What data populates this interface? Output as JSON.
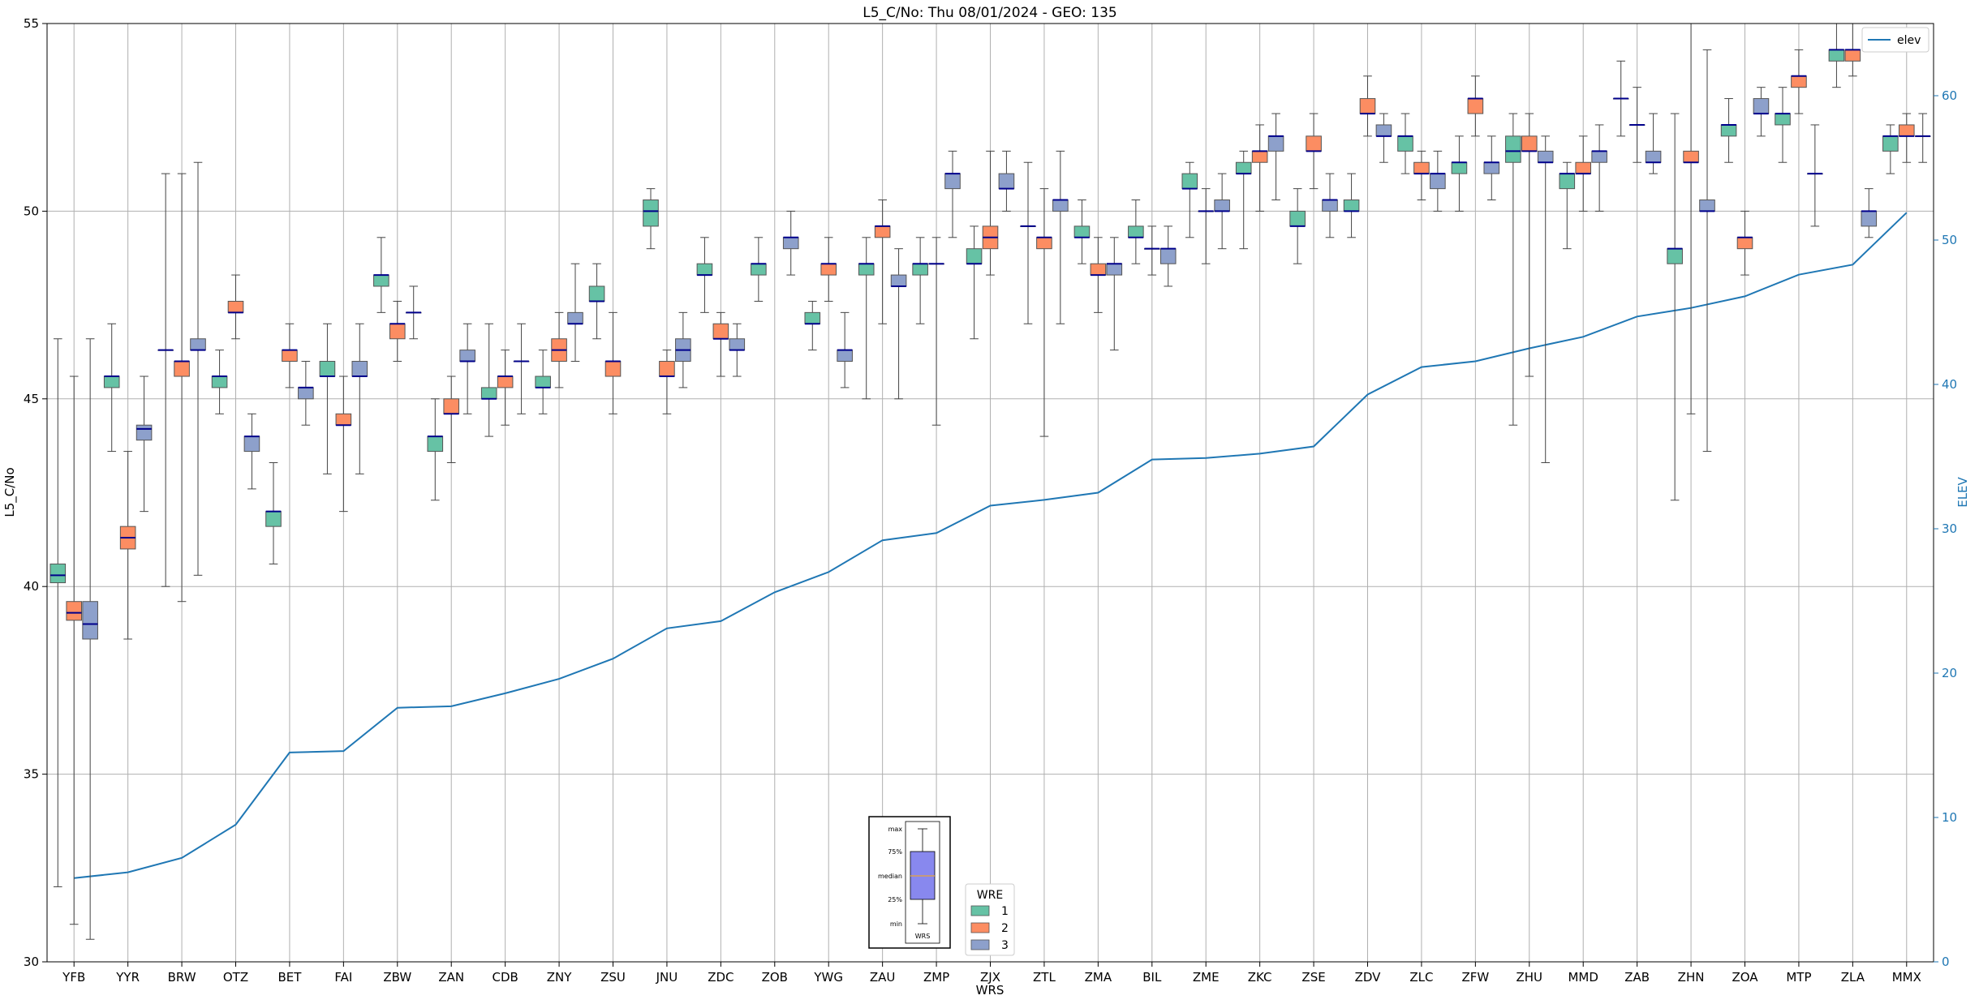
{
  "chart_data": {
    "type": "box",
    "title": "L5_C/No: Thu 08/01/2024 - GEO: 135",
    "xlabel": "WRS",
    "ylabel": "L5_C/No",
    "y2label": "ELEV",
    "ylim": [
      30,
      55
    ],
    "y2lim": [
      0,
      65
    ],
    "yticks": [
      30,
      35,
      40,
      45,
      50,
      55
    ],
    "y2ticks": [
      0,
      10,
      20,
      30,
      40,
      50,
      60
    ],
    "grid": true,
    "categories": [
      "YFB",
      "YYR",
      "BRW",
      "OTZ",
      "BET",
      "FAI",
      "ZBW",
      "ZAN",
      "CDB",
      "ZNY",
      "ZSU",
      "JNU",
      "ZDC",
      "ZOB",
      "YWG",
      "ZAU",
      "ZMP",
      "ZJX",
      "ZTL",
      "ZMA",
      "BIL",
      "ZME",
      "ZKC",
      "ZSE",
      "ZDV",
      "ZLC",
      "ZFW",
      "ZHU",
      "MMD",
      "ZAB",
      "ZHN",
      "ZOA",
      "MTP",
      "ZLA",
      "MMX"
    ],
    "box_legend": {
      "title": "WRE",
      "entries": [
        {
          "label": "1",
          "color": "#66c2a5"
        },
        {
          "label": "2",
          "color": "#fc8d62"
        },
        {
          "label": "3",
          "color": "#8da0cb"
        }
      ]
    },
    "line_series": {
      "name": "elev",
      "color": "#1f77b4",
      "values": [
        5.8,
        6.2,
        7.2,
        9.5,
        14.5,
        14.6,
        17.6,
        17.7,
        18.6,
        19.6,
        21.0,
        23.1,
        23.6,
        25.6,
        27.0,
        29.2,
        29.7,
        31.6,
        32.0,
        32.5,
        34.8,
        34.9,
        35.2,
        35.7,
        39.3,
        41.2,
        41.6,
        42.5,
        43.3,
        44.7,
        45.3,
        46.1,
        47.6,
        48.3,
        51.9
      ]
    },
    "boxes": [
      {
        "cat": "YFB",
        "wre": 1,
        "min": 32.0,
        "q1": 40.1,
        "median": 40.3,
        "q3": 40.6,
        "max": 46.6
      },
      {
        "cat": "YFB",
        "wre": 2,
        "min": 31.0,
        "q1": 39.1,
        "median": 39.3,
        "q3": 39.6,
        "max": 45.6
      },
      {
        "cat": "YFB",
        "wre": 3,
        "min": 30.6,
        "q1": 38.6,
        "median": 39.0,
        "q3": 39.6,
        "max": 46.6
      },
      {
        "cat": "YYR",
        "wre": 1,
        "min": 43.6,
        "q1": 45.3,
        "median": 45.6,
        "q3": 45.6,
        "max": 47.0
      },
      {
        "cat": "YYR",
        "wre": 2,
        "min": 38.6,
        "q1": 41.0,
        "median": 41.3,
        "q3": 41.6,
        "max": 43.6
      },
      {
        "cat": "YYR",
        "wre": 3,
        "min": 42.0,
        "q1": 43.9,
        "median": 44.2,
        "q3": 44.3,
        "max": 45.6
      },
      {
        "cat": "BRW",
        "wre": 1,
        "min": 40.0,
        "q1": 46.3,
        "median": 46.3,
        "q3": 46.3,
        "max": 51.0
      },
      {
        "cat": "BRW",
        "wre": 2,
        "min": 39.6,
        "q1": 45.6,
        "median": 46.0,
        "q3": 46.0,
        "max": 51.0
      },
      {
        "cat": "BRW",
        "wre": 3,
        "min": 40.3,
        "q1": 46.3,
        "median": 46.3,
        "q3": 46.6,
        "max": 51.3
      },
      {
        "cat": "OTZ",
        "wre": 1,
        "min": 44.6,
        "q1": 45.3,
        "median": 45.6,
        "q3": 45.6,
        "max": 46.3
      },
      {
        "cat": "OTZ",
        "wre": 2,
        "min": 46.6,
        "q1": 47.3,
        "median": 47.3,
        "q3": 47.6,
        "max": 48.3
      },
      {
        "cat": "OTZ",
        "wre": 3,
        "min": 42.6,
        "q1": 43.6,
        "median": 44.0,
        "q3": 44.0,
        "max": 44.6
      },
      {
        "cat": "BET",
        "wre": 1,
        "min": 40.6,
        "q1": 41.6,
        "median": 42.0,
        "q3": 42.0,
        "max": 43.3
      },
      {
        "cat": "BET",
        "wre": 2,
        "min": 45.3,
        "q1": 46.0,
        "median": 46.3,
        "q3": 46.3,
        "max": 47.0
      },
      {
        "cat": "BET",
        "wre": 3,
        "min": 44.3,
        "q1": 45.0,
        "median": 45.3,
        "q3": 45.3,
        "max": 46.0
      },
      {
        "cat": "FAI",
        "wre": 1,
        "min": 43.0,
        "q1": 45.6,
        "median": 45.6,
        "q3": 46.0,
        "max": 47.0
      },
      {
        "cat": "FAI",
        "wre": 2,
        "min": 42.0,
        "q1": 44.3,
        "median": 44.3,
        "q3": 44.6,
        "max": 45.6
      },
      {
        "cat": "FAI",
        "wre": 3,
        "min": 43.0,
        "q1": 45.6,
        "median": 45.6,
        "q3": 46.0,
        "max": 47.0
      },
      {
        "cat": "ZBW",
        "wre": 1,
        "min": 47.3,
        "q1": 48.0,
        "median": 48.3,
        "q3": 48.3,
        "max": 49.3
      },
      {
        "cat": "ZBW",
        "wre": 2,
        "min": 46.0,
        "q1": 46.6,
        "median": 47.0,
        "q3": 47.0,
        "max": 47.6
      },
      {
        "cat": "ZBW",
        "wre": 3,
        "min": 46.6,
        "q1": 47.3,
        "median": 47.3,
        "q3": 47.3,
        "max": 48.0
      },
      {
        "cat": "ZAN",
        "wre": 1,
        "min": 42.3,
        "q1": 43.6,
        "median": 44.0,
        "q3": 44.0,
        "max": 45.0
      },
      {
        "cat": "ZAN",
        "wre": 2,
        "min": 43.3,
        "q1": 44.6,
        "median": 44.6,
        "q3": 45.0,
        "max": 45.6
      },
      {
        "cat": "ZAN",
        "wre": 3,
        "min": 44.6,
        "q1": 46.0,
        "median": 46.0,
        "q3": 46.3,
        "max": 47.0
      },
      {
        "cat": "CDB",
        "wre": 1,
        "min": 44.0,
        "q1": 45.0,
        "median": 45.0,
        "q3": 45.3,
        "max": 47.0
      },
      {
        "cat": "CDB",
        "wre": 2,
        "min": 44.3,
        "q1": 45.3,
        "median": 45.6,
        "q3": 45.6,
        "max": 46.3
      },
      {
        "cat": "CDB",
        "wre": 3,
        "min": 44.6,
        "q1": 46.0,
        "median": 46.0,
        "q3": 46.0,
        "max": 47.0
      },
      {
        "cat": "ZNY",
        "wre": 1,
        "min": 44.6,
        "q1": 45.3,
        "median": 45.3,
        "q3": 45.6,
        "max": 46.3
      },
      {
        "cat": "ZNY",
        "wre": 2,
        "min": 45.3,
        "q1": 46.0,
        "median": 46.3,
        "q3": 46.6,
        "max": 47.3
      },
      {
        "cat": "ZNY",
        "wre": 3,
        "min": 46.0,
        "q1": 47.0,
        "median": 47.0,
        "q3": 47.3,
        "max": 48.6
      },
      {
        "cat": "ZSU",
        "wre": 1,
        "min": 46.6,
        "q1": 47.6,
        "median": 47.6,
        "q3": 48.0,
        "max": 48.6
      },
      {
        "cat": "ZSU",
        "wre": 2,
        "min": 44.6,
        "q1": 45.6,
        "median": 46.0,
        "q3": 46.0,
        "max": 47.3
      },
      {
        "cat": "JNU",
        "wre": 1,
        "min": 49.0,
        "q1": 49.6,
        "median": 50.0,
        "q3": 50.3,
        "max": 50.6
      },
      {
        "cat": "JNU",
        "wre": 2,
        "min": 44.6,
        "q1": 45.6,
        "median": 45.6,
        "q3": 46.0,
        "max": 46.3
      },
      {
        "cat": "JNU",
        "wre": 3,
        "min": 45.3,
        "q1": 46.0,
        "median": 46.3,
        "q3": 46.6,
        "max": 47.3
      },
      {
        "cat": "ZDC",
        "wre": 1,
        "min": 47.3,
        "q1": 48.3,
        "median": 48.3,
        "q3": 48.6,
        "max": 49.3
      },
      {
        "cat": "ZDC",
        "wre": 2,
        "min": 45.6,
        "q1": 46.6,
        "median": 46.6,
        "q3": 47.0,
        "max": 47.3
      },
      {
        "cat": "ZDC",
        "wre": 3,
        "min": 45.6,
        "q1": 46.3,
        "median": 46.3,
        "q3": 46.6,
        "max": 47.0
      },
      {
        "cat": "ZOB",
        "wre": 1,
        "min": 47.6,
        "q1": 48.3,
        "median": 48.6,
        "q3": 48.6,
        "max": 49.3
      },
      {
        "cat": "ZOB",
        "wre": 3,
        "min": 48.3,
        "q1": 49.0,
        "median": 49.3,
        "q3": 49.3,
        "max": 50.0
      },
      {
        "cat": "YWG",
        "wre": 1,
        "min": 46.3,
        "q1": 47.0,
        "median": 47.0,
        "q3": 47.3,
        "max": 47.6
      },
      {
        "cat": "YWG",
        "wre": 2,
        "min": 47.6,
        "q1": 48.3,
        "median": 48.6,
        "q3": 48.6,
        "max": 49.3
      },
      {
        "cat": "YWG",
        "wre": 3,
        "min": 45.3,
        "q1": 46.0,
        "median": 46.3,
        "q3": 46.3,
        "max": 47.3
      },
      {
        "cat": "ZAU",
        "wre": 1,
        "min": 45.0,
        "q1": 48.3,
        "median": 48.6,
        "q3": 48.6,
        "max": 49.3
      },
      {
        "cat": "ZAU",
        "wre": 2,
        "min": 47.0,
        "q1": 49.3,
        "median": 49.6,
        "q3": 49.6,
        "max": 50.3
      },
      {
        "cat": "ZAU",
        "wre": 3,
        "min": 45.0,
        "q1": 48.0,
        "median": 48.0,
        "q3": 48.3,
        "max": 49.0
      },
      {
        "cat": "ZMP",
        "wre": 1,
        "min": 47.0,
        "q1": 48.3,
        "median": 48.6,
        "q3": 48.6,
        "max": 49.3
      },
      {
        "cat": "ZMP",
        "wre": 2,
        "min": 44.3,
        "q1": 48.6,
        "median": 48.6,
        "q3": 48.6,
        "max": 49.3
      },
      {
        "cat": "ZMP",
        "wre": 3,
        "min": 49.3,
        "q1": 50.6,
        "median": 51.0,
        "q3": 51.0,
        "max": 51.6
      },
      {
        "cat": "ZJX",
        "wre": 1,
        "min": 46.6,
        "q1": 48.6,
        "median": 48.6,
        "q3": 49.0,
        "max": 49.6
      },
      {
        "cat": "ZJX",
        "wre": 2,
        "min": 48.3,
        "q1": 49.0,
        "median": 49.3,
        "q3": 49.6,
        "max": 51.6
      },
      {
        "cat": "ZJX",
        "wre": 3,
        "min": 50.0,
        "q1": 50.6,
        "median": 50.6,
        "q3": 51.0,
        "max": 51.6
      },
      {
        "cat": "ZTL",
        "wre": 1,
        "min": 47.0,
        "q1": 49.6,
        "median": 49.6,
        "q3": 49.6,
        "max": 51.3
      },
      {
        "cat": "ZTL",
        "wre": 2,
        "min": 44.0,
        "q1": 49.0,
        "median": 49.3,
        "q3": 49.3,
        "max": 50.6
      },
      {
        "cat": "ZTL",
        "wre": 3,
        "min": 47.0,
        "q1": 50.0,
        "median": 50.3,
        "q3": 50.3,
        "max": 51.6
      },
      {
        "cat": "ZMA",
        "wre": 1,
        "min": 48.6,
        "q1": 49.3,
        "median": 49.3,
        "q3": 49.6,
        "max": 50.3
      },
      {
        "cat": "ZMA",
        "wre": 2,
        "min": 47.3,
        "q1": 48.3,
        "median": 48.3,
        "q3": 48.6,
        "max": 49.3
      },
      {
        "cat": "ZMA",
        "wre": 3,
        "min": 46.3,
        "q1": 48.3,
        "median": 48.6,
        "q3": 48.6,
        "max": 49.3
      },
      {
        "cat": "BIL",
        "wre": 1,
        "min": 48.6,
        "q1": 49.3,
        "median": 49.3,
        "q3": 49.6,
        "max": 50.3
      },
      {
        "cat": "BIL",
        "wre": 2,
        "min": 48.3,
        "q1": 49.0,
        "median": 49.0,
        "q3": 49.0,
        "max": 49.6
      },
      {
        "cat": "BIL",
        "wre": 3,
        "min": 48.0,
        "q1": 48.6,
        "median": 49.0,
        "q3": 49.0,
        "max": 49.6
      },
      {
        "cat": "ZME",
        "wre": 1,
        "min": 49.3,
        "q1": 50.6,
        "median": 50.6,
        "q3": 51.0,
        "max": 51.3
      },
      {
        "cat": "ZME",
        "wre": 2,
        "min": 48.6,
        "q1": 50.0,
        "median": 50.0,
        "q3": 50.0,
        "max": 50.6
      },
      {
        "cat": "ZME",
        "wre": 3,
        "min": 49.0,
        "q1": 50.0,
        "median": 50.0,
        "q3": 50.3,
        "max": 51.0
      },
      {
        "cat": "ZKC",
        "wre": 1,
        "min": 49.0,
        "q1": 51.0,
        "median": 51.0,
        "q3": 51.3,
        "max": 51.6
      },
      {
        "cat": "ZKC",
        "wre": 2,
        "min": 50.0,
        "q1": 51.3,
        "median": 51.6,
        "q3": 51.6,
        "max": 52.3
      },
      {
        "cat": "ZKC",
        "wre": 3,
        "min": 50.3,
        "q1": 51.6,
        "median": 52.0,
        "q3": 52.0,
        "max": 52.6
      },
      {
        "cat": "ZSE",
        "wre": 1,
        "min": 48.6,
        "q1": 49.6,
        "median": 49.6,
        "q3": 50.0,
        "max": 50.6
      },
      {
        "cat": "ZSE",
        "wre": 2,
        "min": 50.6,
        "q1": 51.6,
        "median": 51.6,
        "q3": 52.0,
        "max": 52.6
      },
      {
        "cat": "ZSE",
        "wre": 3,
        "min": 49.3,
        "q1": 50.0,
        "median": 50.3,
        "q3": 50.3,
        "max": 51.0
      },
      {
        "cat": "ZDV",
        "wre": 1,
        "min": 49.3,
        "q1": 50.0,
        "median": 50.0,
        "q3": 50.3,
        "max": 51.0
      },
      {
        "cat": "ZDV",
        "wre": 2,
        "min": 52.0,
        "q1": 52.6,
        "median": 52.6,
        "q3": 53.0,
        "max": 53.6
      },
      {
        "cat": "ZDV",
        "wre": 3,
        "min": 51.3,
        "q1": 52.0,
        "median": 52.0,
        "q3": 52.3,
        "max": 52.6
      },
      {
        "cat": "ZLC",
        "wre": 1,
        "min": 51.0,
        "q1": 51.6,
        "median": 52.0,
        "q3": 52.0,
        "max": 52.6
      },
      {
        "cat": "ZLC",
        "wre": 2,
        "min": 50.3,
        "q1": 51.0,
        "median": 51.0,
        "q3": 51.3,
        "max": 51.6
      },
      {
        "cat": "ZLC",
        "wre": 3,
        "min": 50.0,
        "q1": 50.6,
        "median": 51.0,
        "q3": 51.0,
        "max": 51.6
      },
      {
        "cat": "ZFW",
        "wre": 1,
        "min": 50.0,
        "q1": 51.0,
        "median": 51.3,
        "q3": 51.3,
        "max": 52.0
      },
      {
        "cat": "ZFW",
        "wre": 2,
        "min": 52.0,
        "q1": 52.6,
        "median": 53.0,
        "q3": 53.0,
        "max": 53.6
      },
      {
        "cat": "ZFW",
        "wre": 3,
        "min": 50.3,
        "q1": 51.0,
        "median": 51.3,
        "q3": 51.3,
        "max": 52.0
      },
      {
        "cat": "ZHU",
        "wre": 1,
        "min": 44.3,
        "q1": 51.3,
        "median": 51.6,
        "q3": 52.0,
        "max": 52.6
      },
      {
        "cat": "ZHU",
        "wre": 2,
        "min": 45.6,
        "q1": 51.6,
        "median": 51.6,
        "q3": 52.0,
        "max": 52.6
      },
      {
        "cat": "ZHU",
        "wre": 3,
        "min": 43.3,
        "q1": 51.3,
        "median": 51.3,
        "q3": 51.6,
        "max": 52.0
      },
      {
        "cat": "MMD",
        "wre": 1,
        "min": 49.0,
        "q1": 50.6,
        "median": 51.0,
        "q3": 51.0,
        "max": 51.3
      },
      {
        "cat": "MMD",
        "wre": 2,
        "min": 50.0,
        "q1": 51.0,
        "median": 51.0,
        "q3": 51.3,
        "max": 52.0
      },
      {
        "cat": "MMD",
        "wre": 3,
        "min": 50.0,
        "q1": 51.3,
        "median": 51.6,
        "q3": 51.6,
        "max": 52.3
      },
      {
        "cat": "ZAB",
        "wre": 1,
        "min": 52.0,
        "q1": 53.0,
        "median": 53.0,
        "q3": 53.0,
        "max": 54.0
      },
      {
        "cat": "ZAB",
        "wre": 2,
        "min": 51.3,
        "q1": 52.3,
        "median": 52.3,
        "q3": 52.3,
        "max": 53.3
      },
      {
        "cat": "ZAB",
        "wre": 3,
        "min": 51.0,
        "q1": 51.3,
        "median": 51.3,
        "q3": 51.6,
        "max": 52.6
      },
      {
        "cat": "ZHN",
        "wre": 1,
        "min": 42.3,
        "q1": 48.6,
        "median": 49.0,
        "q3": 49.0,
        "max": 52.6
      },
      {
        "cat": "ZHN",
        "wre": 2,
        "min": 44.6,
        "q1": 51.3,
        "median": 51.3,
        "q3": 51.6,
        "max": 55.0
      },
      {
        "cat": "ZHN",
        "wre": 3,
        "min": 43.6,
        "q1": 50.0,
        "median": 50.0,
        "q3": 50.3,
        "max": 54.3
      },
      {
        "cat": "ZOA",
        "wre": 1,
        "min": 51.3,
        "q1": 52.0,
        "median": 52.3,
        "q3": 52.3,
        "max": 53.0
      },
      {
        "cat": "ZOA",
        "wre": 2,
        "min": 48.3,
        "q1": 49.0,
        "median": 49.3,
        "q3": 49.3,
        "max": 50.0
      },
      {
        "cat": "ZOA",
        "wre": 3,
        "min": 52.0,
        "q1": 52.6,
        "median": 52.6,
        "q3": 53.0,
        "max": 53.3
      },
      {
        "cat": "MTP",
        "wre": 1,
        "min": 51.3,
        "q1": 52.3,
        "median": 52.6,
        "q3": 52.6,
        "max": 53.3
      },
      {
        "cat": "MTP",
        "wre": 2,
        "min": 52.6,
        "q1": 53.3,
        "median": 53.6,
        "q3": 53.6,
        "max": 54.3
      },
      {
        "cat": "MTP",
        "wre": 3,
        "min": 49.6,
        "q1": 51.0,
        "median": 51.0,
        "q3": 51.0,
        "max": 52.3
      },
      {
        "cat": "ZLA",
        "wre": 1,
        "min": 53.3,
        "q1": 54.0,
        "median": 54.3,
        "q3": 54.3,
        "max": 55.0
      },
      {
        "cat": "ZLA",
        "wre": 2,
        "min": 53.6,
        "q1": 54.0,
        "median": 54.3,
        "q3": 54.3,
        "max": 55.0
      },
      {
        "cat": "ZLA",
        "wre": 3,
        "min": 49.3,
        "q1": 49.6,
        "median": 50.0,
        "q3": 50.0,
        "max": 50.6
      },
      {
        "cat": "MMX",
        "wre": 1,
        "min": 51.0,
        "q1": 51.6,
        "median": 52.0,
        "q3": 52.0,
        "max": 52.3
      },
      {
        "cat": "MMX",
        "wre": 2,
        "min": 51.3,
        "q1": 52.0,
        "median": 52.0,
        "q3": 52.3,
        "max": 52.6
      },
      {
        "cat": "MMX",
        "wre": 3,
        "min": 51.3,
        "q1": 52.0,
        "median": 52.0,
        "q3": 52.0,
        "max": 52.6
      }
    ],
    "inset": {
      "labels": [
        "max",
        "75%",
        "median",
        "25%",
        "min"
      ],
      "xlabel": "WRS"
    }
  }
}
